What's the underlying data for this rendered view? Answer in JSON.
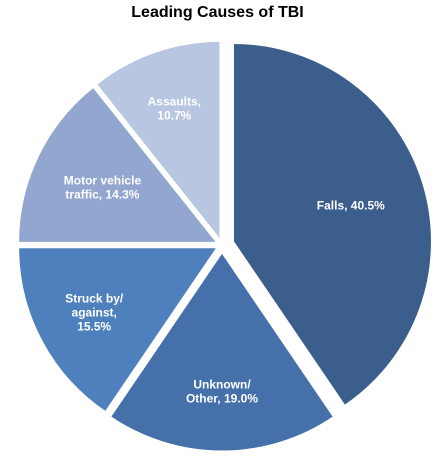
{
  "chart_data": {
    "type": "pie",
    "title": "Leading Causes of TBI",
    "slices": [
      {
        "label_lines": [
          "Falls, 40.5%"
        ],
        "value": 40.5,
        "color": "#3b5e8c"
      },
      {
        "label_lines": [
          "Unknown/",
          "Other, 19.0%"
        ],
        "value": 19.0,
        "color": "#4570aa"
      },
      {
        "label_lines": [
          "Struck by/",
          "against,",
          "15.5%"
        ],
        "value": 15.5,
        "color": "#4f80be"
      },
      {
        "label_lines": [
          "Motor vehicle",
          "traffic, 14.3%"
        ],
        "value": 14.3,
        "color": "#92a6cf"
      },
      {
        "label_lines": [
          "Assaults,",
          "10.7%"
        ],
        "value": 10.7,
        "color": "#b9c6e1"
      }
    ],
    "legend": "none"
  }
}
